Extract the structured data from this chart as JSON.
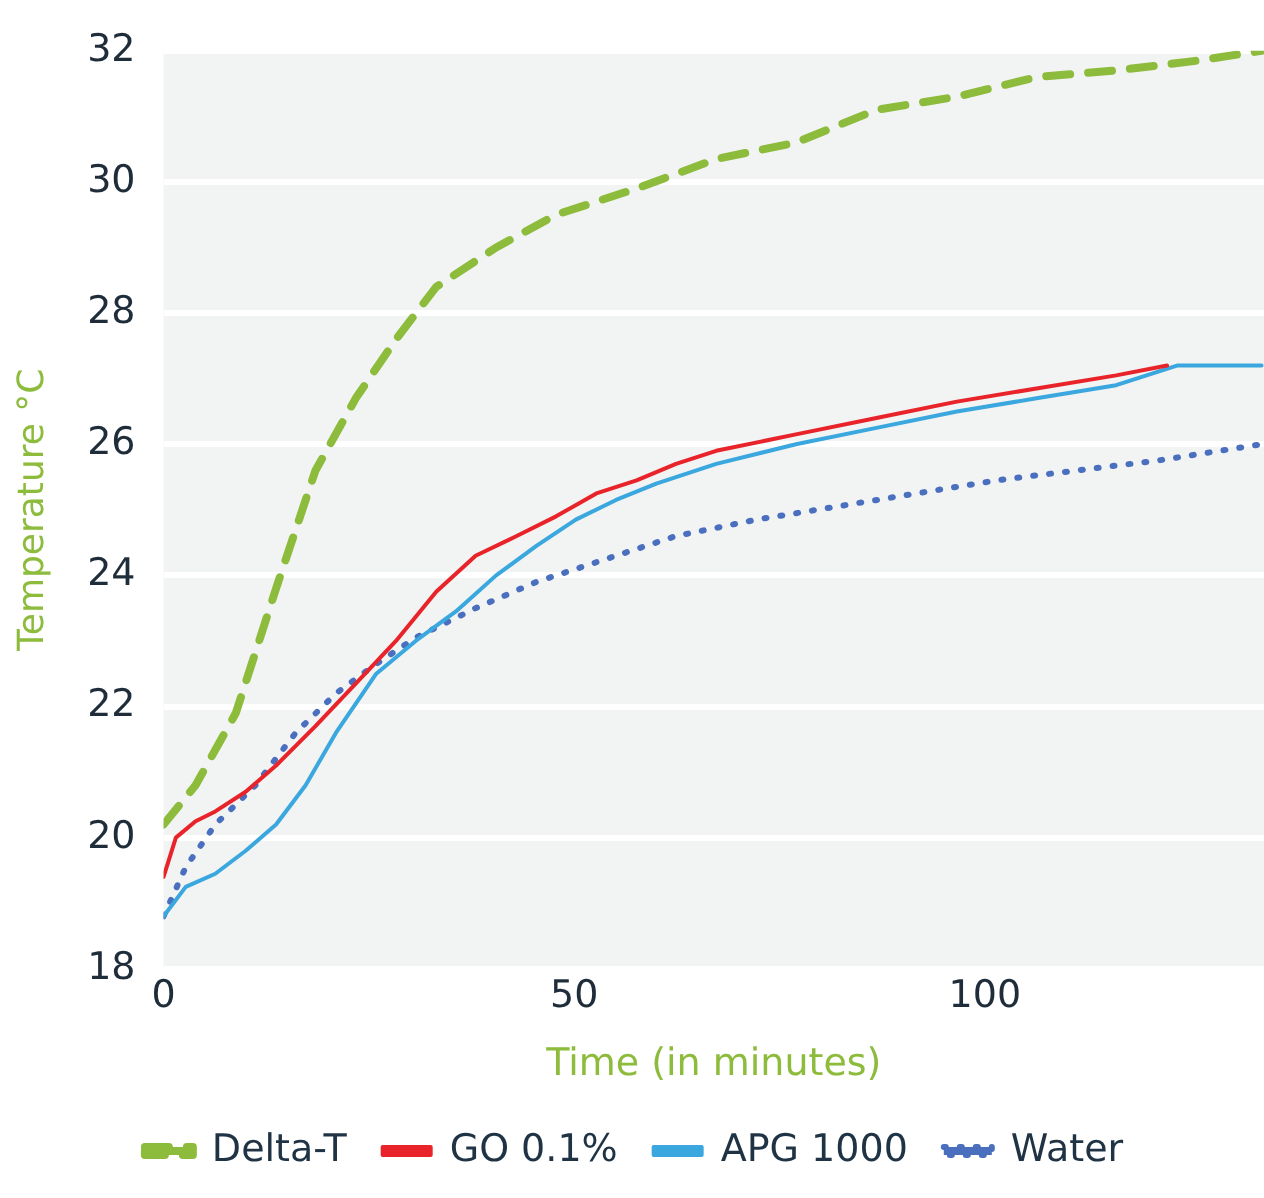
{
  "chart_data": {
    "type": "line",
    "xlabel": "Time (in minutes)",
    "ylabel": "Temperature °C",
    "xlim": [
      0,
      134
    ],
    "xticks": [
      0,
      50,
      100
    ],
    "ylim": [
      18,
      32
    ],
    "yticks": [
      18,
      20,
      22,
      24,
      26,
      28,
      30,
      32
    ],
    "grid": "y",
    "legend": "bottom",
    "marker": "none",
    "series": [
      {
        "name": "Delta-T",
        "color": "#8dbb3c",
        "line_style": "dashed",
        "x": [
          0,
          3.9,
          8.8,
          13.7,
          18.5,
          23.4,
          28.3,
          33.2,
          40.5,
          47.8,
          57.6,
          67.3,
          77,
          86.8,
          96.6,
          106.3,
          116,
          125.9,
          133.7
        ],
        "values": [
          20.2,
          20.8,
          21.9,
          23.8,
          25.6,
          26.7,
          27.6,
          28.4,
          29.0,
          29.5,
          29.9,
          30.35,
          30.6,
          31.1,
          31.3,
          31.6,
          31.7,
          31.85,
          32.0
        ]
      },
      {
        "name": "GO 0.1%",
        "color": "#e8242a",
        "line_style": "solid",
        "x": [
          0,
          1.5,
          3.9,
          6.3,
          10,
          13.7,
          18.5,
          23.4,
          28.3,
          33.2,
          38,
          43,
          47.8,
          52.7,
          57.6,
          62.4,
          67.3,
          77,
          86.8,
          96.6,
          106.3,
          116,
          122.2
        ],
        "values": [
          19.4,
          20.0,
          20.25,
          20.4,
          20.7,
          21.1,
          21.7,
          22.35,
          23.0,
          23.75,
          24.3,
          24.6,
          24.9,
          25.25,
          25.45,
          25.7,
          25.9,
          26.15,
          26.4,
          26.65,
          26.85,
          27.05,
          27.2
        ]
      },
      {
        "name": "APG 1000",
        "color": "#3aa7df",
        "line_style": "solid",
        "x": [
          0,
          2.7,
          6.3,
          10,
          13.7,
          17.3,
          21,
          25.9,
          30.7,
          35.6,
          40.5,
          45.4,
          50.2,
          55.1,
          60,
          67.3,
          77,
          86.8,
          96.6,
          106.3,
          116,
          123.4,
          133.7
        ],
        "values": [
          18.8,
          19.25,
          19.45,
          19.8,
          20.2,
          20.8,
          21.6,
          22.5,
          23.0,
          23.45,
          24.0,
          24.45,
          24.85,
          25.15,
          25.4,
          25.7,
          26.0,
          26.25,
          26.5,
          26.7,
          26.9,
          27.2,
          27.2
        ]
      },
      {
        "name": "Water",
        "color": "#4a6fbf",
        "line_style": "dotted",
        "x": [
          0,
          2.7,
          6.3,
          11.2,
          16.1,
          21,
          25.9,
          30.7,
          38,
          45.4,
          52.7,
          62.4,
          72.2,
          82,
          91.7,
          101.5,
          111.2,
          121,
          133.7
        ],
        "values": [
          18.8,
          19.55,
          20.2,
          20.8,
          21.6,
          22.2,
          22.65,
          23.05,
          23.5,
          23.9,
          24.2,
          24.6,
          24.85,
          25.05,
          25.25,
          25.45,
          25.6,
          25.75,
          26.0
        ]
      }
    ]
  }
}
